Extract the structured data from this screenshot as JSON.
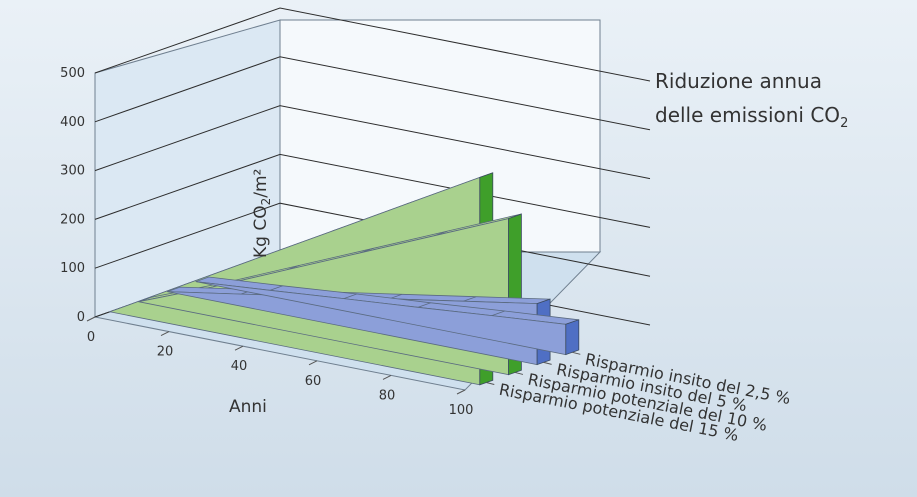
{
  "chart_data": {
    "type": "area",
    "title_line1": "Riduzione annua",
    "title_line2_prefix": "delle emissioni CO",
    "title_line2_sub": "2",
    "xlabel": "Anni",
    "ylabel_prefix": "Kg CO",
    "ylabel_sub": "2",
    "ylabel_suffix": "/m²",
    "x": [
      0,
      20,
      40,
      60,
      80,
      100
    ],
    "xlim": [
      0,
      100
    ],
    "ylim": [
      0,
      500
    ],
    "y_ticks": [
      0,
      100,
      200,
      300,
      400,
      500
    ],
    "grid": true,
    "series": [
      {
        "name": "Risparmio insito del 2,5 %",
        "color": "#8c9fd9",
        "values": [
          0,
          12,
          25,
          37,
          50,
          62
        ]
      },
      {
        "name": "Risparmio insito del 5 %",
        "color": "#8c9fd9",
        "values": [
          0,
          25,
          50,
          75,
          100,
          125
        ]
      },
      {
        "name": "Risparmio potenziale del 10 %",
        "color": "#a9d18e",
        "values": [
          0,
          60,
          125,
          190,
          255,
          320
        ]
      },
      {
        "name": "Risparmio potenziale del 15 %",
        "color": "#a9d18e",
        "values": [
          0,
          85,
          170,
          255,
          340,
          425
        ]
      }
    ]
  }
}
